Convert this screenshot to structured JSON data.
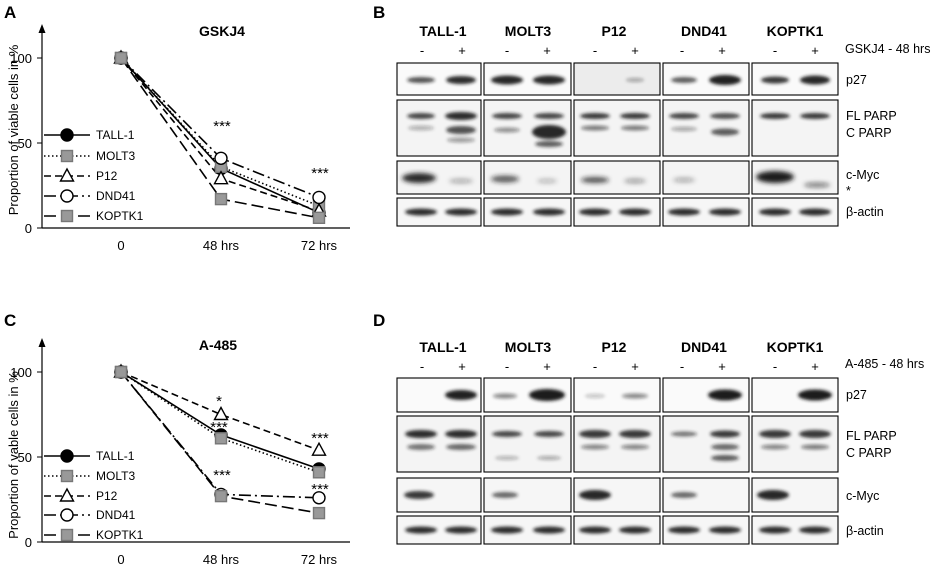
{
  "figure": {
    "panels": {
      "A": {
        "letter": "A",
        "title": "GSKJ4",
        "ylabel": "Proportion of viable cells in %",
        "yticks": [
          "0",
          "50",
          "100"
        ],
        "xticks": [
          "0",
          "48 hrs",
          "72 hrs"
        ],
        "legend": [
          "TALL-1",
          "MOLT3",
          "P12",
          "DND41",
          "KOPTK1"
        ],
        "stars": [
          "***",
          "***"
        ]
      },
      "B": {
        "letter": "B",
        "cell_lines": [
          "TALL-1",
          "MOLT3",
          "P12",
          "DND41",
          "KOPTK1"
        ],
        "minus": "-",
        "plus": "+",
        "treatment": "GSKJ4 - 48 hrs",
        "bands": [
          "p27",
          "FL PARP",
          "C PARP",
          "c-Myc",
          "*",
          "β-actin"
        ]
      },
      "C": {
        "letter": "C",
        "title": "A-485",
        "ylabel": "Proportion of vable cells in %",
        "yticks": [
          "0",
          "50",
          "100"
        ],
        "xticks": [
          "0",
          "48 hrs",
          "72 hrs"
        ],
        "legend": [
          "TALL-1",
          "MOLT3",
          "P12",
          "DND41",
          "KOPTK1"
        ],
        "stars": [
          "*",
          "***",
          "***",
          "***",
          "***"
        ]
      },
      "D": {
        "letter": "D",
        "cell_lines": [
          "TALL-1",
          "MOLT3",
          "P12",
          "DND41",
          "KOPTK1"
        ],
        "minus": "-",
        "plus": "+",
        "treatment": "A-485 - 48 hrs",
        "bands": [
          "p27",
          "FL PARP",
          "C PARP",
          "c-Myc",
          "β-actin"
        ]
      }
    }
  },
  "chart_data": [
    {
      "type": "line",
      "panel": "A",
      "title": "GSKJ4",
      "x": [
        "0",
        "48 hrs",
        "72 hrs"
      ],
      "ylabel": "Proportion of viable cells in %",
      "ylim": [
        0,
        100
      ],
      "series": [
        {
          "name": "TALL-1",
          "values": [
            100,
            35,
            9
          ]
        },
        {
          "name": "MOLT3",
          "values": [
            100,
            36,
            13
          ]
        },
        {
          "name": "P12",
          "values": [
            100,
            29,
            10
          ]
        },
        {
          "name": "DND41",
          "values": [
            100,
            41,
            18
          ]
        },
        {
          "name": "KOPTK1",
          "values": [
            100,
            17,
            6
          ]
        }
      ]
    },
    {
      "type": "line",
      "panel": "C",
      "title": "A-485",
      "x": [
        "0",
        "48 hrs",
        "72 hrs"
      ],
      "ylabel": "Proportion of vable cells in %",
      "ylim": [
        0,
        100
      ],
      "series": [
        {
          "name": "TALL-1",
          "values": [
            100,
            63,
            43
          ]
        },
        {
          "name": "MOLT3",
          "values": [
            100,
            61,
            41
          ]
        },
        {
          "name": "P12",
          "values": [
            100,
            75,
            54
          ]
        },
        {
          "name": "DND41",
          "values": [
            100,
            28,
            26
          ]
        },
        {
          "name": "KOPTK1",
          "values": [
            100,
            27,
            17
          ]
        }
      ]
    }
  ]
}
